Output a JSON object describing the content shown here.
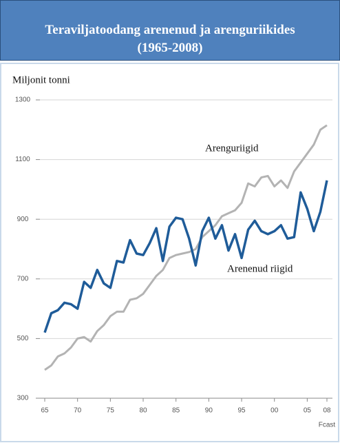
{
  "chart_data": {
    "type": "line",
    "title": "Teraviljatoodang arenenud ja arenguriikides (1965-2008)",
    "y_label": "Miljonit tonni",
    "x_note": "Fcast",
    "x": [
      1965,
      1966,
      1967,
      1968,
      1969,
      1970,
      1971,
      1972,
      1973,
      1974,
      1975,
      1976,
      1977,
      1978,
      1979,
      1980,
      1981,
      1982,
      1983,
      1984,
      1985,
      1986,
      1987,
      1988,
      1989,
      1990,
      1991,
      1992,
      1993,
      1994,
      1995,
      1996,
      1997,
      1998,
      1999,
      2000,
      2001,
      2002,
      2003,
      2004,
      2005,
      2006,
      2007,
      2008
    ],
    "series": [
      {
        "name": "Arenenud riigid",
        "color": "#1f5c99",
        "values": [
          520,
          585,
          595,
          620,
          615,
          600,
          690,
          670,
          730,
          685,
          670,
          760,
          755,
          830,
          785,
          780,
          820,
          870,
          760,
          875,
          905,
          900,
          835,
          745,
          860,
          905,
          835,
          880,
          795,
          850,
          770,
          865,
          895,
          860,
          850,
          860,
          880,
          835,
          840,
          990,
          935,
          860,
          925,
          1030
        ]
      },
      {
        "name": "Arenguriigid",
        "color": "#b3b3b3",
        "values": [
          395,
          410,
          440,
          450,
          470,
          500,
          505,
          490,
          525,
          545,
          575,
          590,
          590,
          630,
          635,
          650,
          680,
          710,
          730,
          770,
          780,
          785,
          790,
          800,
          840,
          860,
          880,
          910,
          920,
          930,
          955,
          1020,
          1010,
          1040,
          1045,
          1010,
          1030,
          1005,
          1060,
          1090,
          1120,
          1150,
          1200,
          1215
        ]
      }
    ],
    "xlim": [
      1965,
      2008
    ],
    "xticks": [
      {
        "value": 1965,
        "label": "65"
      },
      {
        "value": 1970,
        "label": "70"
      },
      {
        "value": 1975,
        "label": "75"
      },
      {
        "value": 1980,
        "label": "80"
      },
      {
        "value": 1985,
        "label": "85"
      },
      {
        "value": 1990,
        "label": "90"
      },
      {
        "value": 1995,
        "label": "95"
      },
      {
        "value": 2000,
        "label": "00"
      },
      {
        "value": 2005,
        "label": "05"
      },
      {
        "value": 2008,
        "label": "08"
      }
    ],
    "ylim": [
      300,
      1300
    ],
    "yticks": [
      300,
      500,
      700,
      900,
      1100,
      1300
    ],
    "grid": true
  }
}
